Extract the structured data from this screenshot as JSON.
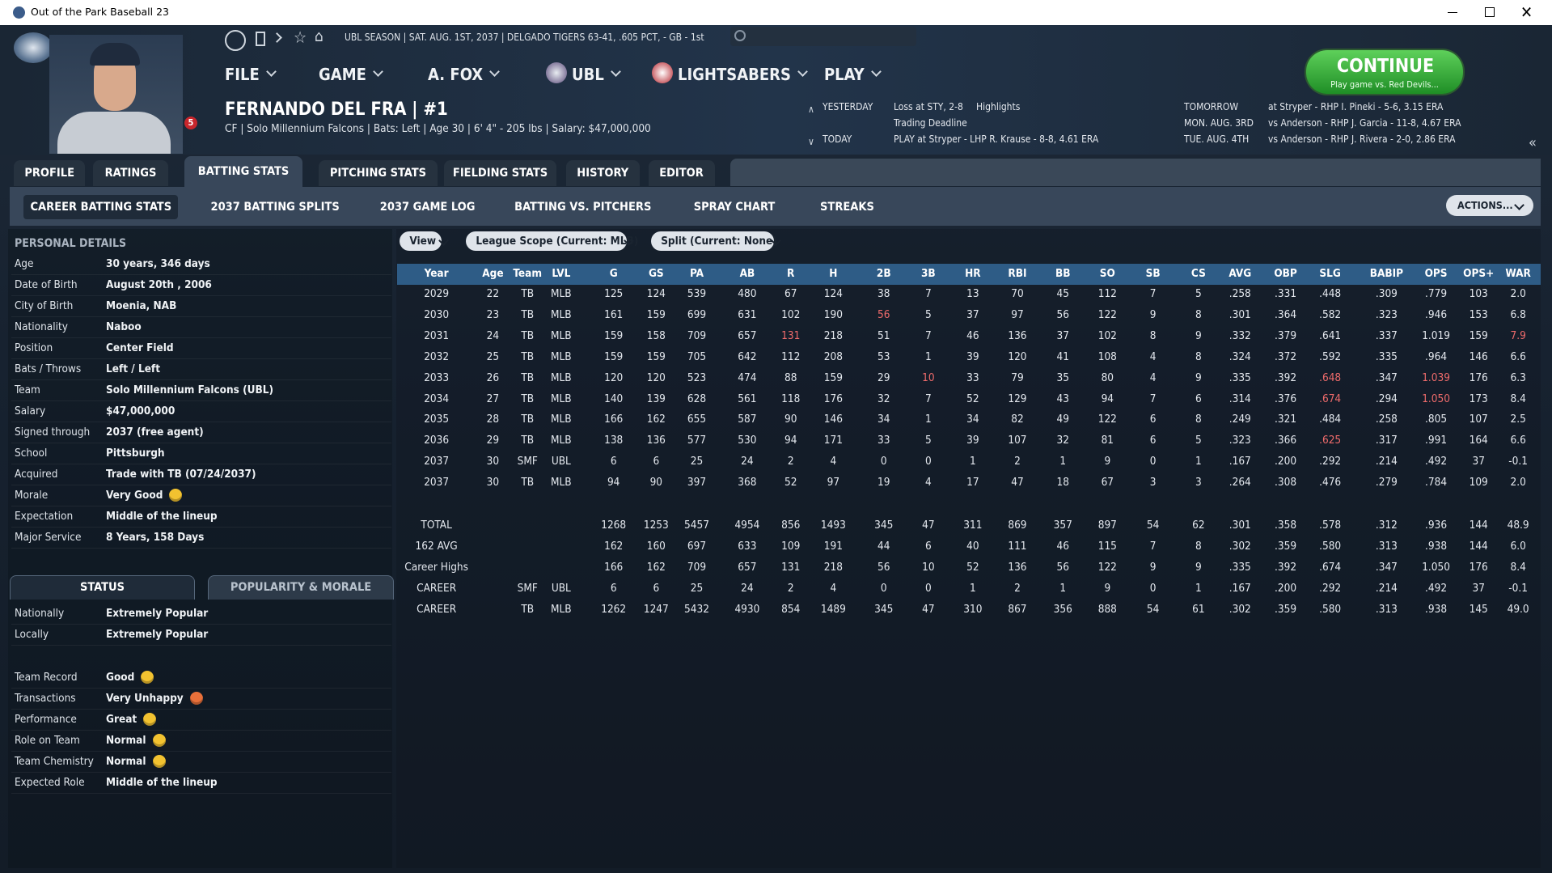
{
  "window": {
    "title": "Out of the Park Baseball 23"
  },
  "topbar": "UBL SEASON  |  SAT. AUG. 1ST, 2037  |  DELGADO TIGERS   63-41, .605 PCT, - GB - 1st",
  "menu": [
    "FILE",
    "GAME",
    "A. FOX",
    "UBL",
    "LIGHTSABERS",
    "PLAY"
  ],
  "continue": {
    "label": "CONTINUE",
    "sub": "Play game vs. Red Devils..."
  },
  "player": {
    "name": "FERNANDO DEL FRA | #1",
    "info": "CF | Solo Millennium Falcons | Bats: Left | Age 30 | 6' 4\" - 205 lbs | Salary: $47,000,000",
    "badge": "5"
  },
  "schedule": {
    "yesterday": {
      "label": "YESTERDAY",
      "result": "Loss at STY, 2-8",
      "link": "Highlights",
      "note": "Trading Deadline"
    },
    "today": {
      "label": "TODAY",
      "game": "PLAY at Stryper - LHP R. Krause - 8-8, 4.61 ERA"
    },
    "upcoming": [
      {
        "label": "TOMORROW",
        "game": "at Stryper - RHP I. Pineki - 5-6, 3.15 ERA"
      },
      {
        "label": "MON. AUG. 3RD",
        "game": "vs Anderson - RHP J. Garcia - 11-8, 4.67 ERA"
      },
      {
        "label": "TUE. AUG. 4TH",
        "game": "vs Anderson - RHP J. Rivera - 2-0, 2.86 ERA"
      }
    ]
  },
  "tabs": {
    "items": [
      "PROFILE",
      "RATINGS",
      "BATTING STATS",
      "PITCHING STATS",
      "FIELDING STATS",
      "HISTORY",
      "EDITOR"
    ],
    "active": 2
  },
  "subtabs": {
    "items": [
      "CAREER BATTING STATS",
      "2037 BATTING SPLITS",
      "2037 GAME LOG",
      "BATTING VS. PITCHERS",
      "SPRAY CHART",
      "STREAKS"
    ],
    "active": 0
  },
  "actions": "ACTIONS...",
  "personal": {
    "title": "PERSONAL DETAILS",
    "rows": [
      {
        "label": "Age",
        "value": "30 years, 346 days"
      },
      {
        "label": "Date of Birth",
        "value": "August 20th , 2006"
      },
      {
        "label": "City of Birth",
        "value": "Moenia, NAB"
      },
      {
        "label": "Nationality",
        "value": "Naboo"
      },
      {
        "label": "Position",
        "value": "Center Field"
      },
      {
        "label": "Bats / Throws",
        "value": "Left / Left"
      },
      {
        "label": "Team",
        "value": "Solo Millennium Falcons (UBL)"
      },
      {
        "label": "Salary",
        "value": "$47,000,000"
      },
      {
        "label": "Signed through",
        "value": "2037 (free agent)"
      },
      {
        "label": "School",
        "value": "Pittsburgh"
      },
      {
        "label": "Acquired",
        "value": "Trade with TB (07/24/2037)"
      },
      {
        "label": "Morale",
        "value": "Very Good",
        "icon": "#f2c230"
      },
      {
        "label": "Expectation",
        "value": "Middle of the lineup"
      },
      {
        "label": "Major Service",
        "value": "8 Years, 158 Days"
      }
    ]
  },
  "status": {
    "tabs": [
      "STATUS",
      "POPULARITY & MORALE"
    ],
    "active": 0,
    "groups": [
      [
        {
          "label": "Nationally",
          "value": "Extremely Popular"
        },
        {
          "label": "Locally",
          "value": "Extremely Popular"
        }
      ],
      [
        {
          "label": "Team Record",
          "value": "Good",
          "icon": "#f2c230"
        },
        {
          "label": "Transactions",
          "value": "Very Unhappy",
          "icon": "#e8703a"
        },
        {
          "label": "Performance",
          "value": "Great",
          "icon": "#f2c230"
        },
        {
          "label": "Role on Team",
          "value": "Normal",
          "icon": "#f2c230"
        },
        {
          "label": "Team Chemistry",
          "value": "Normal",
          "icon": "#f2c230"
        },
        {
          "label": "Expected Role",
          "value": "Middle of the lineup"
        }
      ]
    ]
  },
  "filters": [
    "View",
    "League Scope (Current: MLB)",
    "Split (Current: None)"
  ],
  "table": {
    "columns": [
      "Year",
      "Age",
      "Team",
      "LVL",
      "G",
      "GS",
      "PA",
      "AB",
      "R",
      "H",
      "2B",
      "3B",
      "HR",
      "RBI",
      "BB",
      "SO",
      "SB",
      "CS",
      "AVG",
      "OBP",
      "SLG",
      "BABIP",
      "OPS",
      "OPS+",
      "WAR"
    ],
    "rows": [
      [
        "2029",
        "22",
        "TB",
        "MLB",
        "125",
        "124",
        "539",
        "480",
        "67",
        "124",
        "38",
        "7",
        "13",
        "70",
        "45",
        "112",
        "7",
        "5",
        ".258",
        ".331",
        ".448",
        ".309",
        ".779",
        "103",
        "2.0"
      ],
      [
        "2030",
        "23",
        "TB",
        "MLB",
        "161",
        "159",
        "699",
        "631",
        "102",
        "190",
        "56",
        "5",
        "37",
        "97",
        "56",
        "122",
        "9",
        "8",
        ".301",
        ".364",
        ".582",
        ".323",
        ".946",
        "153",
        "6.8"
      ],
      [
        "2031",
        "24",
        "TB",
        "MLB",
        "159",
        "158",
        "709",
        "657",
        "131",
        "218",
        "51",
        "7",
        "46",
        "136",
        "37",
        "102",
        "8",
        "9",
        ".332",
        ".379",
        ".641",
        ".337",
        "1.019",
        "159",
        "7.9"
      ],
      [
        "2032",
        "25",
        "TB",
        "MLB",
        "159",
        "159",
        "705",
        "642",
        "112",
        "208",
        "53",
        "1",
        "39",
        "120",
        "41",
        "108",
        "4",
        "8",
        ".324",
        ".372",
        ".592",
        ".335",
        ".964",
        "146",
        "6.6"
      ],
      [
        "2033",
        "26",
        "TB",
        "MLB",
        "120",
        "120",
        "523",
        "474",
        "88",
        "159",
        "29",
        "10",
        "33",
        "79",
        "35",
        "80",
        "4",
        "9",
        ".335",
        ".392",
        ".648",
        ".347",
        "1.039",
        "176",
        "6.3"
      ],
      [
        "2034",
        "27",
        "TB",
        "MLB",
        "140",
        "139",
        "628",
        "561",
        "118",
        "176",
        "32",
        "7",
        "52",
        "129",
        "43",
        "94",
        "7",
        "6",
        ".314",
        ".376",
        ".674",
        ".294",
        "1.050",
        "173",
        "8.4"
      ],
      [
        "2035",
        "28",
        "TB",
        "MLB",
        "166",
        "162",
        "655",
        "587",
        "90",
        "146",
        "34",
        "1",
        "34",
        "82",
        "49",
        "122",
        "6",
        "8",
        ".249",
        ".321",
        ".484",
        ".258",
        ".805",
        "107",
        "2.5"
      ],
      [
        "2036",
        "29",
        "TB",
        "MLB",
        "138",
        "136",
        "577",
        "530",
        "94",
        "171",
        "33",
        "5",
        "39",
        "107",
        "32",
        "81",
        "6",
        "5",
        ".323",
        ".366",
        ".625",
        ".317",
        ".991",
        "164",
        "6.6"
      ],
      [
        "2037",
        "30",
        "SMF",
        "UBL",
        "6",
        "6",
        "25",
        "24",
        "2",
        "4",
        "0",
        "0",
        "1",
        "2",
        "1",
        "9",
        "0",
        "1",
        ".167",
        ".200",
        ".292",
        ".214",
        ".492",
        "37",
        "-0.1"
      ],
      [
        "2037",
        "30",
        "TB",
        "MLB",
        "94",
        "90",
        "397",
        "368",
        "52",
        "97",
        "19",
        "4",
        "17",
        "47",
        "18",
        "67",
        "3",
        "3",
        ".264",
        ".308",
        ".476",
        ".279",
        ".784",
        "109",
        "2.0"
      ]
    ],
    "summary": [
      [
        "TOTAL",
        null,
        null,
        null,
        "1268",
        "1253",
        "5457",
        "4954",
        "856",
        "1493",
        "345",
        "47",
        "311",
        "869",
        "357",
        "897",
        "54",
        "62",
        ".301",
        ".358",
        ".578",
        ".312",
        ".936",
        "144",
        "48.9"
      ],
      [
        "162 AVG",
        null,
        null,
        null,
        "162",
        "160",
        "697",
        "633",
        "109",
        "191",
        "44",
        "6",
        "40",
        "111",
        "46",
        "115",
        "7",
        "8",
        ".302",
        ".359",
        ".580",
        ".313",
        ".938",
        "144",
        "6.0"
      ],
      [
        "Career Highs",
        null,
        null,
        null,
        "166",
        "162",
        "709",
        "657",
        "131",
        "218",
        "56",
        "10",
        "52",
        "136",
        "56",
        "122",
        "9",
        "9",
        ".335",
        ".392",
        ".674",
        ".347",
        "1.050",
        "176",
        "8.4"
      ],
      [
        "CAREER",
        null,
        "SMF",
        "UBL",
        "6",
        "6",
        "25",
        "24",
        "2",
        "4",
        "0",
        "0",
        "1",
        "2",
        "1",
        "9",
        "0",
        "1",
        ".167",
        ".200",
        ".292",
        ".214",
        ".492",
        "37",
        "-0.1"
      ],
      [
        "CAREER",
        null,
        "TB",
        "MLB",
        "1262",
        "1247",
        "5432",
        "4930",
        "854",
        "1489",
        "345",
        "47",
        "310",
        "867",
        "356",
        "888",
        "54",
        "61",
        ".302",
        ".359",
        ".580",
        ".313",
        ".938",
        "145",
        "49.0"
      ]
    ],
    "highlights": [
      [
        1,
        10
      ],
      [
        2,
        8
      ],
      [
        2,
        24
      ],
      [
        4,
        11
      ],
      [
        4,
        20
      ],
      [
        4,
        22
      ],
      [
        5,
        20
      ],
      [
        5,
        22
      ],
      [
        7,
        20
      ]
    ],
    "highlight_color": "#ef6b6b"
  }
}
